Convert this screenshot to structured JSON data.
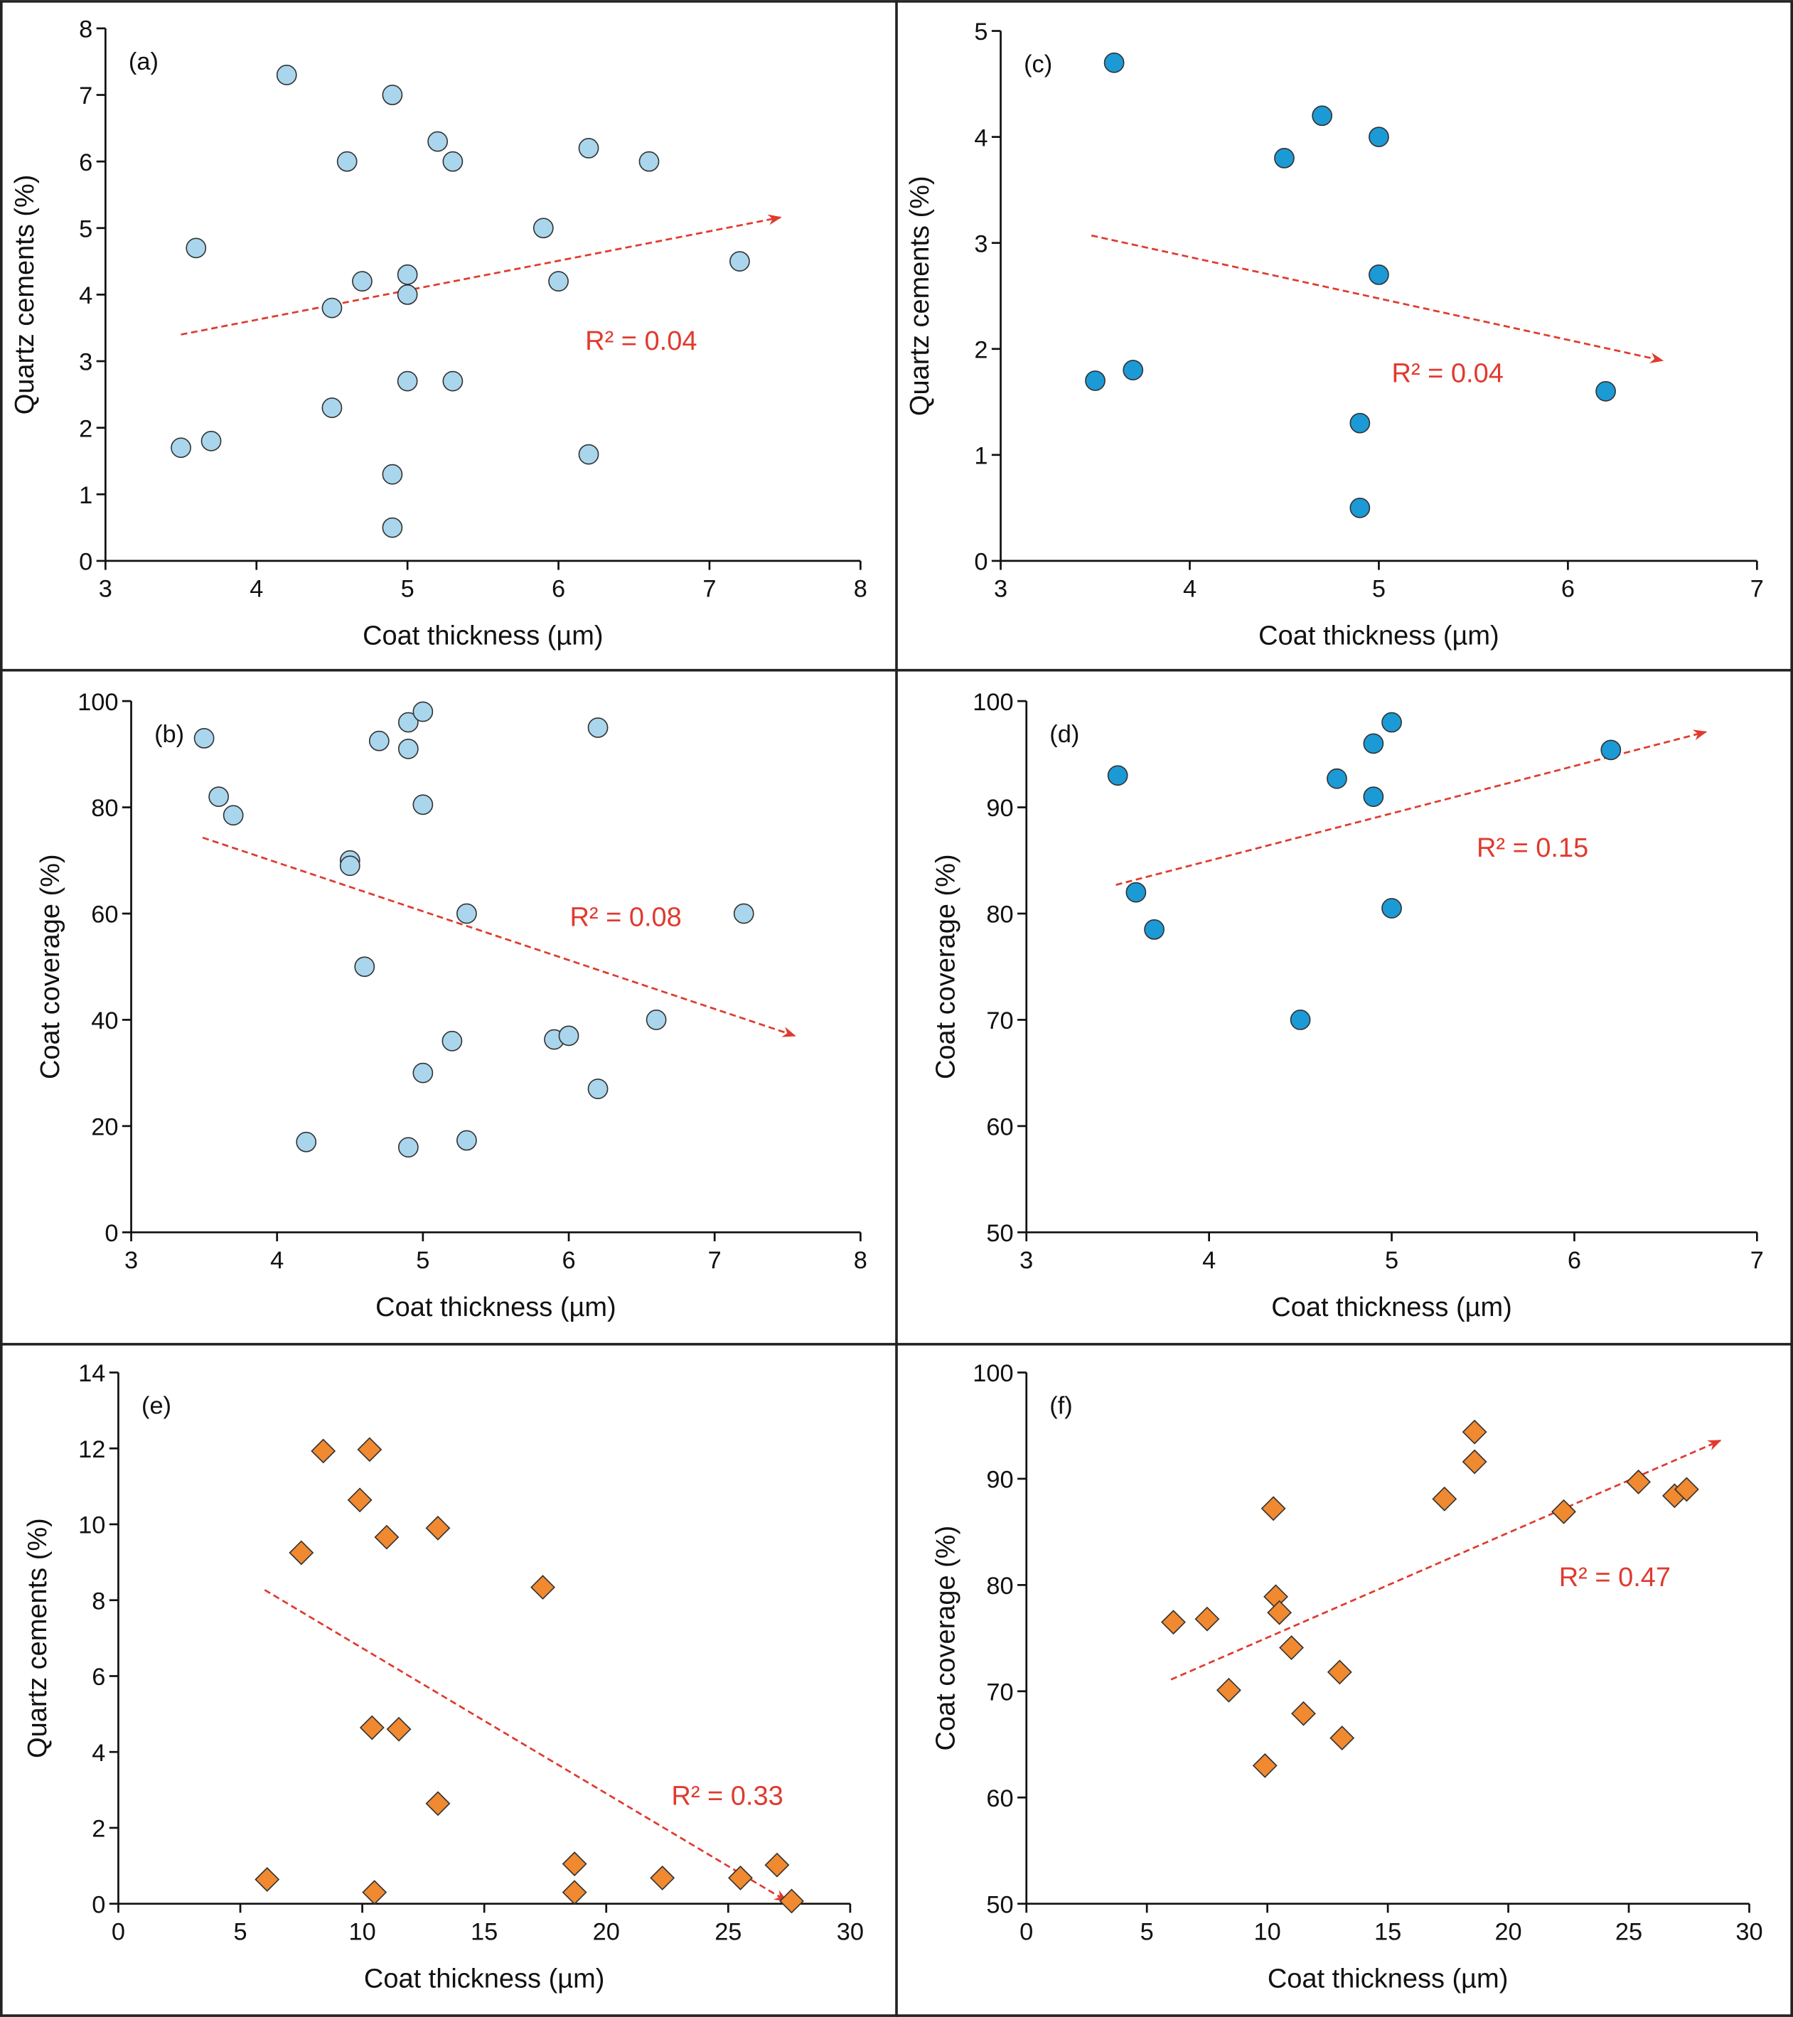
{
  "chart_data": [
    {
      "type": "scatter",
      "panel_label": "(a)",
      "xlabel": "Coat thickness (µm)",
      "ylabel": "Quartz cements (%)",
      "x": [
        4.2,
        4.9,
        5.2,
        4.6,
        5.3,
        6.2,
        6.6,
        3.6,
        5.9,
        7.2,
        4.7,
        5.0,
        5.0,
        6.0,
        4.5,
        5.0,
        5.3,
        4.5,
        3.5,
        3.7,
        6.2,
        4.9,
        4.9
      ],
      "values": [
        7.3,
        7.0,
        6.3,
        6.0,
        6.0,
        6.2,
        6.0,
        4.7,
        5.0,
        4.5,
        4.2,
        4.3,
        4.0,
        4.2,
        3.8,
        2.7,
        2.7,
        2.3,
        1.7,
        1.8,
        1.6,
        1.3,
        0.5
      ],
      "color": "#a9d6ec",
      "marker": "circle",
      "xlim": [
        3,
        8
      ],
      "ylim": [
        0,
        8
      ],
      "xticks": [
        3,
        4,
        5,
        6,
        7,
        8
      ],
      "yticks": [
        0,
        1,
        2,
        3,
        4,
        5,
        6,
        7,
        8
      ],
      "trendline": {
        "x": [
          3.5,
          7.47
        ],
        "y": [
          3.4,
          5.16
        ],
        "color": "#e03a2f"
      },
      "annotation": "R² = 0.04"
    },
    {
      "type": "scatter",
      "panel_label": "(b)",
      "xlabel": "Coat thickness (µm)",
      "ylabel": "Coat coverage (%)",
      "x": [
        3.5,
        3.6,
        3.7,
        4.5,
        4.5,
        4.6,
        4.7,
        4.9,
        4.9,
        5.0,
        5.0,
        5.3,
        5.2,
        5.0,
        4.2,
        4.9,
        5.3,
        5.9,
        6.0,
        6.2,
        6.2,
        6.6,
        7.2
      ],
      "values": [
        93,
        82,
        78.5,
        70,
        69,
        50,
        92.5,
        96,
        91,
        98,
        80.5,
        60,
        36,
        30,
        17,
        16,
        17.3,
        36.3,
        37,
        95,
        27,
        40,
        60
      ],
      "color": "#a9d6ec",
      "marker": "circle",
      "xlim": [
        3,
        8
      ],
      "ylim": [
        0,
        100
      ],
      "xticks": [
        3,
        4,
        5,
        6,
        7,
        8
      ],
      "yticks": [
        0,
        20,
        40,
        60,
        80,
        100
      ],
      "trendline": {
        "x": [
          3.49,
          7.55
        ],
        "y": [
          74.3,
          37
        ],
        "color": "#e03a2f"
      },
      "annotation": "R² = 0.08"
    },
    {
      "type": "scatter",
      "panel_label": "(c)",
      "xlabel": "Coat thickness (µm)",
      "ylabel": "Quartz cements (%)",
      "x": [
        3.6,
        4.7,
        4.5,
        5.0,
        5.0,
        3.5,
        3.7,
        4.9,
        4.9,
        6.2
      ],
      "values": [
        4.7,
        4.2,
        3.8,
        4.0,
        2.7,
        1.7,
        1.8,
        1.3,
        0.5,
        1.6
      ],
      "color": "#1b9ad6",
      "marker": "circle",
      "xlim": [
        3,
        7
      ],
      "ylim": [
        0,
        5
      ],
      "xticks": [
        3,
        4,
        5,
        6,
        7
      ],
      "yticks": [
        0,
        1,
        2,
        3,
        4,
        5
      ],
      "trendline": {
        "x": [
          3.48,
          6.5
        ],
        "y": [
          3.07,
          1.89
        ],
        "color": "#e03a2f"
      },
      "annotation": "R² = 0.04"
    },
    {
      "type": "scatter",
      "panel_label": "(d)",
      "xlabel": "Coat thickness (µm)",
      "ylabel": "Coat coverage (%)",
      "x": [
        3.5,
        3.6,
        3.7,
        4.5,
        4.7,
        4.9,
        4.9,
        5.0,
        5.0,
        6.2
      ],
      "values": [
        93,
        82,
        78.5,
        70,
        92.7,
        96,
        91,
        98,
        80.5,
        95.4
      ],
      "color": "#1b9ad6",
      "marker": "circle",
      "xlim": [
        3,
        7
      ],
      "ylim": [
        50,
        100
      ],
      "xticks": [
        3,
        4,
        5,
        6,
        7
      ],
      "yticks": [
        50,
        60,
        70,
        80,
        90,
        100
      ],
      "trendline": {
        "x": [
          3.49,
          6.72
        ],
        "y": [
          82.7,
          97.1
        ],
        "color": "#e03a2f"
      },
      "annotation": "R² = 0.15"
    },
    {
      "type": "scatter",
      "panel_label": "(e)",
      "xlabel": "Coat thickness (µm)",
      "ylabel": "Quartz cements (%)",
      "x": [
        6.1,
        7.5,
        8.4,
        9.9,
        10.3,
        10.4,
        10.5,
        11.0,
        11.5,
        13.1,
        13.1,
        17.4,
        18.7,
        18.7,
        22.3,
        25.5,
        27.0,
        27.6
      ],
      "values": [
        0.64,
        9.25,
        11.93,
        10.64,
        11.97,
        4.64,
        0.3,
        9.66,
        4.6,
        9.9,
        2.64,
        8.34,
        1.05,
        0.3,
        0.68,
        0.68,
        1.02,
        0.07
      ],
      "color": "#f0892f",
      "marker": "diamond",
      "xlim": [
        0,
        30
      ],
      "ylim": [
        0,
        14
      ],
      "xticks": [
        0,
        5,
        10,
        15,
        20,
        25,
        30
      ],
      "yticks": [
        0,
        2,
        4,
        6,
        8,
        10,
        12,
        14
      ],
      "trendline": {
        "x": [
          6.0,
          27.4
        ],
        "y": [
          8.27,
          0.07
        ],
        "color": "#e03a2f"
      },
      "annotation": "R² = 0.33"
    },
    {
      "type": "scatter",
      "panel_label": "(f)",
      "xlabel": "Coat thickness (µm)",
      "ylabel": "Coat coverage (%)",
      "x": [
        6.1,
        7.5,
        8.4,
        9.9,
        10.25,
        10.35,
        10.5,
        11.0,
        11.5,
        13.0,
        13.1,
        17.35,
        18.6,
        18.6,
        22.3,
        25.4,
        26.9,
        27.4
      ],
      "values": [
        76.5,
        76.8,
        70.1,
        63,
        87.2,
        78.9,
        77.4,
        74.1,
        67.9,
        71.8,
        65.6,
        88.1,
        94.4,
        91.6,
        86.9,
        89.7,
        88.4,
        89.0
      ],
      "color": "#f0892f",
      "marker": "diamond",
      "xlim": [
        0,
        30
      ],
      "ylim": [
        50,
        100
      ],
      "xticks": [
        0,
        5,
        10,
        15,
        20,
        25,
        30
      ],
      "yticks": [
        50,
        60,
        70,
        80,
        90,
        100
      ],
      "trendline": {
        "x": [
          6.0,
          28.8
        ],
        "y": [
          71.1,
          93.6
        ],
        "color": "#e03a2f"
      },
      "annotation": "R² = 0.47"
    }
  ]
}
